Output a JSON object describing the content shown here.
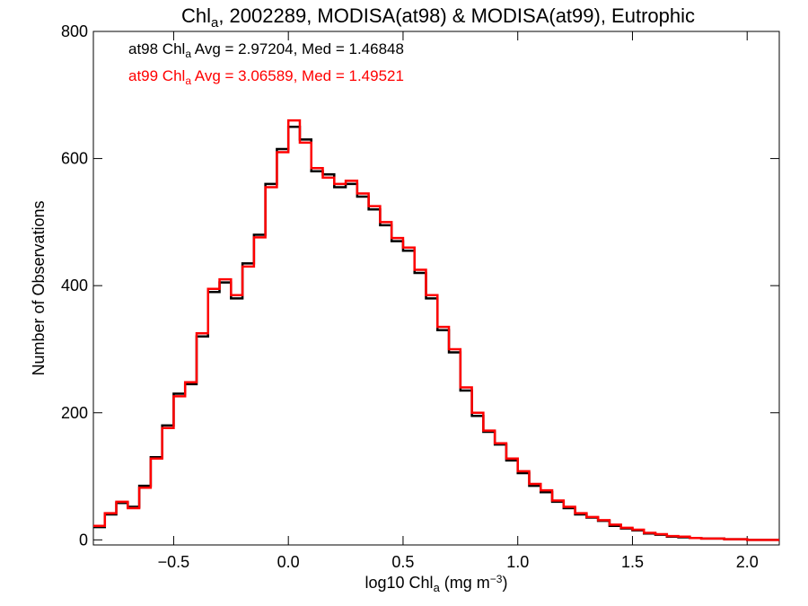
{
  "chart_data": {
    "type": "histogram-step",
    "title": {
      "main": "Chl",
      "sub": "a",
      "rest": ", 2002289, MODISA(at98) & MODISA(at99), Eutrophic"
    },
    "xlabel": {
      "pre": "log10 Chl",
      "sub": "a",
      "mid": " (mg m",
      "sup": "−3",
      "post": ")"
    },
    "ylabel": "Number of Observations",
    "xlim": [
      -0.85,
      2.14
    ],
    "ylim": [
      -8,
      800
    ],
    "xticks": [
      {
        "value": -0.5,
        "label": "−0.5"
      },
      {
        "value": 0.0,
        "label": "0.0"
      },
      {
        "value": 0.5,
        "label": "0.5"
      },
      {
        "value": 1.0,
        "label": "1.0"
      },
      {
        "value": 1.5,
        "label": "1.5"
      },
      {
        "value": 2.0,
        "label": "2.0"
      }
    ],
    "yticks": [
      {
        "value": 0,
        "label": "0"
      },
      {
        "value": 200,
        "label": "200"
      },
      {
        "value": 400,
        "label": "400"
      },
      {
        "value": 600,
        "label": "600"
      },
      {
        "value": 800,
        "label": "800"
      }
    ],
    "annotations": [
      {
        "pre": "at98 Chl",
        "sub": "a",
        "post": " Avg = 2.97204, Med = 1.46848",
        "color": "#000000"
      },
      {
        "pre": "at99 Chl",
        "sub": "a",
        "post": " Avg = 3.06589, Med = 1.49521",
        "color": "#ff0000"
      }
    ],
    "series": [
      {
        "name": "at98",
        "color": "#000000",
        "x": [
          -0.85,
          -0.8,
          -0.75,
          -0.7,
          -0.65,
          -0.6,
          -0.55,
          -0.5,
          -0.45,
          -0.4,
          -0.35,
          -0.3,
          -0.25,
          -0.2,
          -0.15,
          -0.1,
          -0.05,
          0.0,
          0.05,
          0.1,
          0.15,
          0.2,
          0.25,
          0.3,
          0.35,
          0.4,
          0.45,
          0.5,
          0.55,
          0.6,
          0.65,
          0.7,
          0.75,
          0.8,
          0.85,
          0.9,
          0.95,
          1.0,
          1.05,
          1.1,
          1.15,
          1.2,
          1.25,
          1.3,
          1.35,
          1.4,
          1.45,
          1.5,
          1.55,
          1.6,
          1.65,
          1.7,
          1.75,
          1.8,
          1.85,
          1.9,
          1.95,
          2.0,
          2.05,
          2.1
        ],
        "y": [
          20,
          40,
          58,
          52,
          85,
          130,
          180,
          230,
          245,
          320,
          390,
          405,
          380,
          435,
          480,
          560,
          615,
          650,
          630,
          580,
          575,
          555,
          560,
          540,
          520,
          495,
          470,
          455,
          420,
          380,
          330,
          295,
          235,
          195,
          170,
          150,
          125,
          105,
          85,
          75,
          60,
          50,
          40,
          35,
          30,
          22,
          18,
          15,
          10,
          8,
          5,
          4,
          3,
          2,
          2,
          1,
          1,
          0,
          0,
          0
        ]
      },
      {
        "name": "at99",
        "color": "#ff0000",
        "x": [
          -0.85,
          -0.8,
          -0.75,
          -0.7,
          -0.65,
          -0.6,
          -0.55,
          -0.5,
          -0.45,
          -0.4,
          -0.35,
          -0.3,
          -0.25,
          -0.2,
          -0.15,
          -0.1,
          -0.05,
          0.0,
          0.05,
          0.1,
          0.15,
          0.2,
          0.25,
          0.3,
          0.35,
          0.4,
          0.45,
          0.5,
          0.55,
          0.6,
          0.65,
          0.7,
          0.75,
          0.8,
          0.85,
          0.9,
          0.95,
          1.0,
          1.05,
          1.1,
          1.15,
          1.2,
          1.25,
          1.3,
          1.35,
          1.4,
          1.45,
          1.5,
          1.55,
          1.6,
          1.65,
          1.7,
          1.75,
          1.8,
          1.85,
          1.9,
          1.95,
          2.0,
          2.05,
          2.1
        ],
        "y": [
          22,
          42,
          60,
          50,
          82,
          128,
          176,
          226,
          248,
          325,
          395,
          410,
          385,
          430,
          476,
          555,
          610,
          660,
          625,
          585,
          570,
          560,
          565,
          545,
          525,
          500,
          475,
          460,
          425,
          385,
          335,
          300,
          240,
          200,
          172,
          152,
          128,
          108,
          88,
          78,
          62,
          52,
          42,
          36,
          31,
          24,
          19,
          16,
          11,
          9,
          6,
          5,
          3,
          2,
          2,
          1,
          1,
          0,
          0,
          0
        ]
      }
    ]
  }
}
